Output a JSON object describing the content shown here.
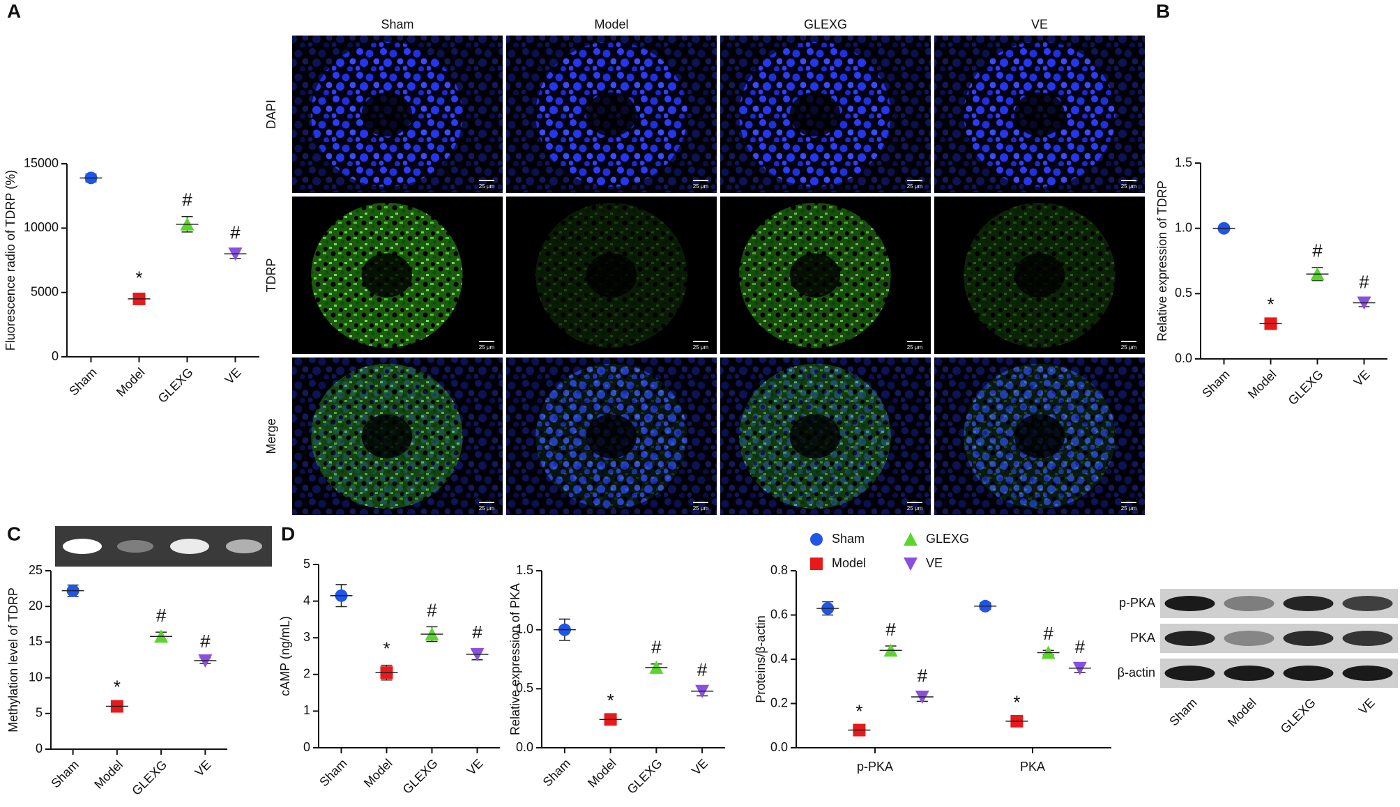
{
  "panel_labels": [
    "A",
    "B",
    "C",
    "D"
  ],
  "microscopy": {
    "columns": [
      "Sham",
      "Model",
      "GLEXG",
      "VE"
    ],
    "rows": [
      "DAPI",
      "TDRP",
      "Merge"
    ],
    "scale_bar": "25 μm"
  },
  "western_blot": {
    "rows": [
      "p-PKA",
      "PKA",
      "β-actin"
    ],
    "lanes": [
      "Sham",
      "Model",
      "GLEXG",
      "VE"
    ]
  },
  "chart_data": [
    {
      "type": "dotplot",
      "y_label": "Fluorescence radio of TDRP (%)",
      "categories": [
        "Sham",
        "Model",
        "GLEXG",
        "VE"
      ],
      "values": [
        13900,
        4500,
        10300,
        8000
      ],
      "errors": [
        300,
        350,
        600,
        350
      ],
      "colors": [
        "#1f55e8",
        "#e8191b",
        "#5ad52c",
        "#8a4fe0"
      ],
      "markers": [
        "circle",
        "square",
        "triangle",
        "triangle-down"
      ],
      "annotations": [
        null,
        "*",
        "#",
        "#"
      ],
      "ylim": [
        0,
        15000
      ],
      "yticks": [
        0,
        5000,
        10000,
        15000
      ]
    },
    {
      "type": "dotplot",
      "y_label": "Relative expression of TDRP",
      "categories": [
        "Sham",
        "Model",
        "GLEXG",
        "VE"
      ],
      "values": [
        1.0,
        0.27,
        0.65,
        0.43
      ],
      "errors": [
        0.02,
        0.02,
        0.05,
        0.03
      ],
      "colors": [
        "#1f55e8",
        "#e8191b",
        "#5ad52c",
        "#8a4fe0"
      ],
      "markers": [
        "circle",
        "square",
        "triangle",
        "triangle-down"
      ],
      "annotations": [
        null,
        "*",
        "#",
        "#"
      ],
      "ylim": [
        0,
        1.5
      ],
      "yticks": [
        {
          "value": 0,
          "label": "0.0"
        },
        0.5,
        {
          "value": 1,
          "label": "1.0"
        },
        1.5
      ]
    },
    {
      "type": "dotplot",
      "y_label": "Methylation level of TDRP",
      "categories": [
        "Sham",
        "Model",
        "GLEXG",
        "VE"
      ],
      "values": [
        22.2,
        6.0,
        15.8,
        12.4
      ],
      "errors": [
        0.8,
        0.4,
        0.6,
        0.4
      ],
      "colors": [
        "#1f55e8",
        "#e8191b",
        "#5ad52c",
        "#8a4fe0"
      ],
      "markers": [
        "circle",
        "square",
        "triangle",
        "triangle-down"
      ],
      "annotations": [
        null,
        "*",
        "#",
        "#"
      ],
      "ylim": [
        0,
        25
      ],
      "yticks": [
        0,
        5,
        10,
        15,
        20,
        25
      ]
    },
    {
      "type": "dotplot",
      "y_label": "cAMP (ng/mL)",
      "categories": [
        "Sham",
        "Model",
        "GLEXG",
        "VE"
      ],
      "values": [
        4.15,
        2.05,
        3.1,
        2.55
      ],
      "errors": [
        0.3,
        0.2,
        0.2,
        0.15
      ],
      "colors": [
        "#1f55e8",
        "#e8191b",
        "#5ad52c",
        "#8a4fe0"
      ],
      "markers": [
        "circle",
        "square",
        "triangle",
        "triangle-down"
      ],
      "annotations": [
        null,
        "*",
        "#",
        "#"
      ],
      "ylim": [
        0,
        5
      ],
      "yticks": [
        0,
        1,
        2,
        3,
        4,
        5
      ]
    },
    {
      "type": "dotplot",
      "y_label": "Relative expression of PKA",
      "categories": [
        "Sham",
        "Model",
        "GLEXG",
        "VE"
      ],
      "values": [
        1.0,
        0.24,
        0.68,
        0.48
      ],
      "errors": [
        0.09,
        0.02,
        0.03,
        0.04
      ],
      "colors": [
        "#1f55e8",
        "#e8191b",
        "#5ad52c",
        "#8a4fe0"
      ],
      "markers": [
        "circle",
        "square",
        "triangle",
        "triangle-down"
      ],
      "annotations": [
        null,
        "*",
        "#",
        "#"
      ],
      "ylim": [
        0,
        1.5
      ],
      "yticks": [
        {
          "value": 0,
          "label": "0.0"
        },
        0.5,
        {
          "value": 1,
          "label": "1.0"
        },
        1.5
      ]
    },
    {
      "type": "dotplot",
      "y_label": "Proteins/β-actin",
      "categories": [
        "p-PKA",
        "PKA"
      ],
      "series": [
        {
          "name": "Sham",
          "color": "#1f55e8",
          "marker": "circle",
          "values": [
            0.63,
            0.64
          ],
          "errors": [
            0.03,
            0.015
          ]
        },
        {
          "name": "Model",
          "color": "#e8191b",
          "marker": "square",
          "values": [
            0.08,
            0.12
          ],
          "errors": [
            0.01,
            0.01
          ],
          "annotations": [
            "*",
            "*"
          ]
        },
        {
          "name": "GLEXG",
          "color": "#5ad52c",
          "marker": "triangle",
          "values": [
            0.44,
            0.43
          ],
          "errors": [
            0.02,
            0.01
          ],
          "annotations": [
            "#",
            "#"
          ]
        },
        {
          "name": "VE",
          "color": "#8a4fe0",
          "marker": "triangle-down",
          "values": [
            0.23,
            0.36
          ],
          "errors": [
            0.02,
            0.02
          ],
          "annotations": [
            "#",
            "#"
          ]
        }
      ],
      "ylim": [
        0,
        0.8
      ],
      "yticks": [
        {
          "value": 0,
          "label": "0.0"
        },
        0.2,
        0.4,
        0.6,
        0.8
      ]
    }
  ]
}
